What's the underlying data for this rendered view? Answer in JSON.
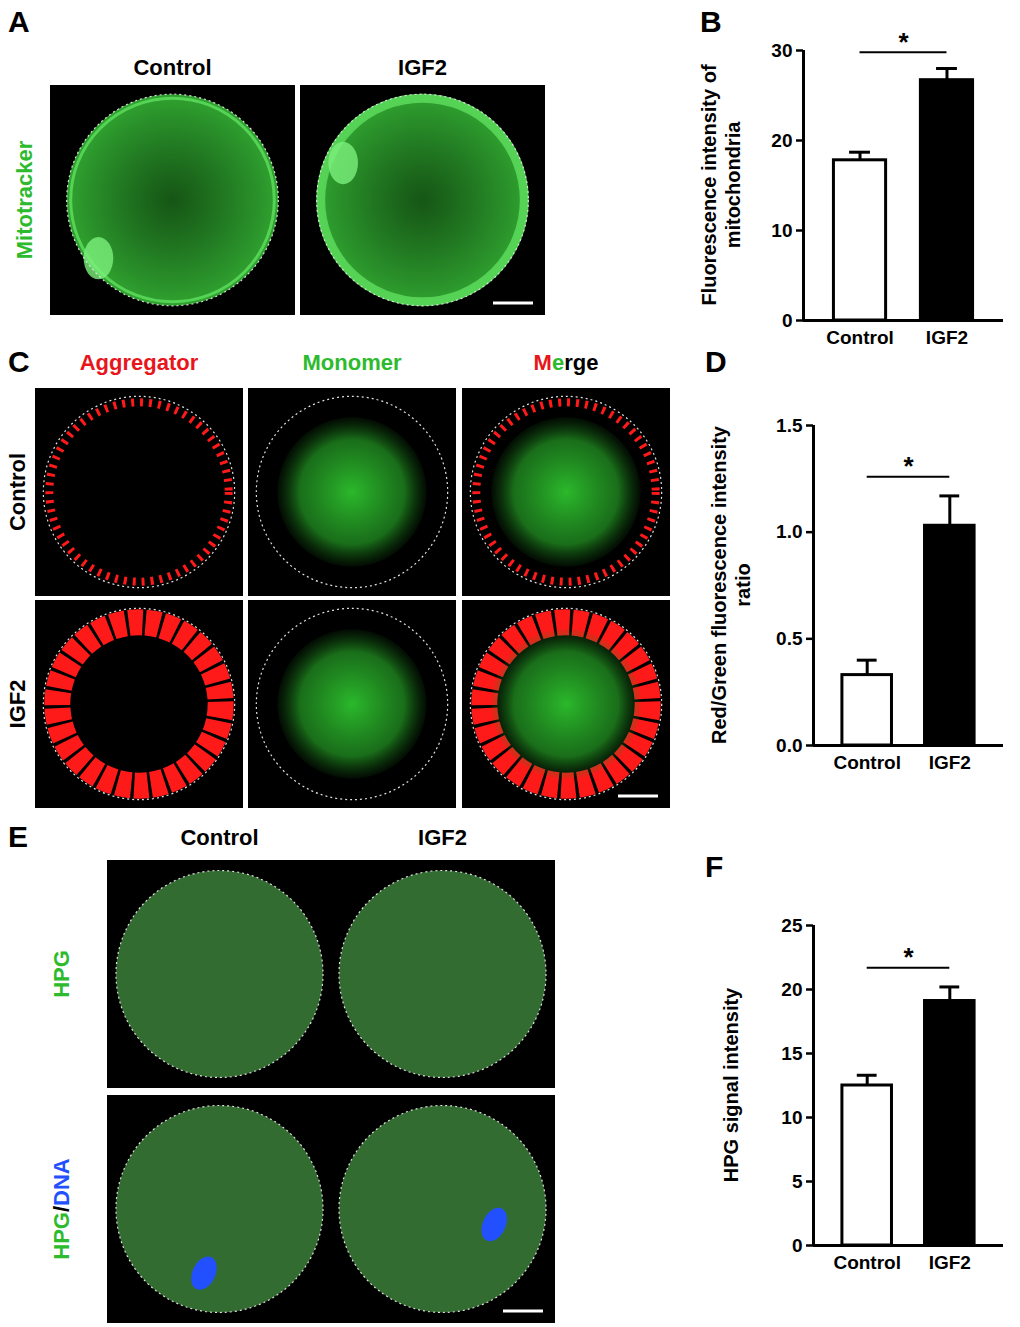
{
  "image_panels": [
    {
      "panel": "A",
      "columns": [
        "Control",
        "IGF2"
      ],
      "rows": [
        "Mitotracker"
      ]
    },
    {
      "panel": "C",
      "columns": [
        "Aggregator",
        "Monomer",
        "Merge"
      ],
      "rows": [
        "Control",
        "IGF2"
      ]
    },
    {
      "panel": "E",
      "columns": [
        "Control",
        "IGF2"
      ],
      "rows": [
        "HPG",
        "HPG/DNA"
      ]
    }
  ],
  "chart_data": [
    {
      "panel": "B",
      "type": "bar",
      "ylabel": "Fluorescence intensity of mitochondria",
      "categories": [
        "Control",
        "IGF2"
      ],
      "values": [
        17.8,
        26.7
      ],
      "errors": [
        0.9,
        1.3
      ],
      "colors": [
        "#ffffff",
        "#000000"
      ],
      "ylim": [
        0,
        30
      ],
      "yticks": [
        0,
        10,
        20,
        30
      ],
      "annotation": "*"
    },
    {
      "panel": "D",
      "type": "bar",
      "ylabel": "Red/Green fluorescence intensity ratio",
      "categories": [
        "Control",
        "IGF2"
      ],
      "values": [
        0.33,
        1.03
      ],
      "errors": [
        0.07,
        0.14
      ],
      "colors": [
        "#ffffff",
        "#000000"
      ],
      "ylim": [
        0,
        1.5
      ],
      "yticks": [
        {
          "value": 0,
          "label": "0.0"
        },
        {
          "value": 0.5,
          "label": "0.5"
        },
        {
          "value": 1,
          "label": "1.0"
        },
        {
          "value": 1.5,
          "label": "1.5"
        }
      ],
      "annotation": "*"
    },
    {
      "panel": "F",
      "type": "bar",
      "ylabel": "HPG signal intensity",
      "categories": [
        "Control",
        "IGF2"
      ],
      "values": [
        12.5,
        19.1
      ],
      "errors": [
        0.8,
        1.1
      ],
      "colors": [
        "#ffffff",
        "#000000"
      ],
      "ylim": [
        0,
        25
      ],
      "yticks": [
        0,
        5,
        10,
        15,
        20,
        25
      ],
      "annotation": "*"
    }
  ]
}
